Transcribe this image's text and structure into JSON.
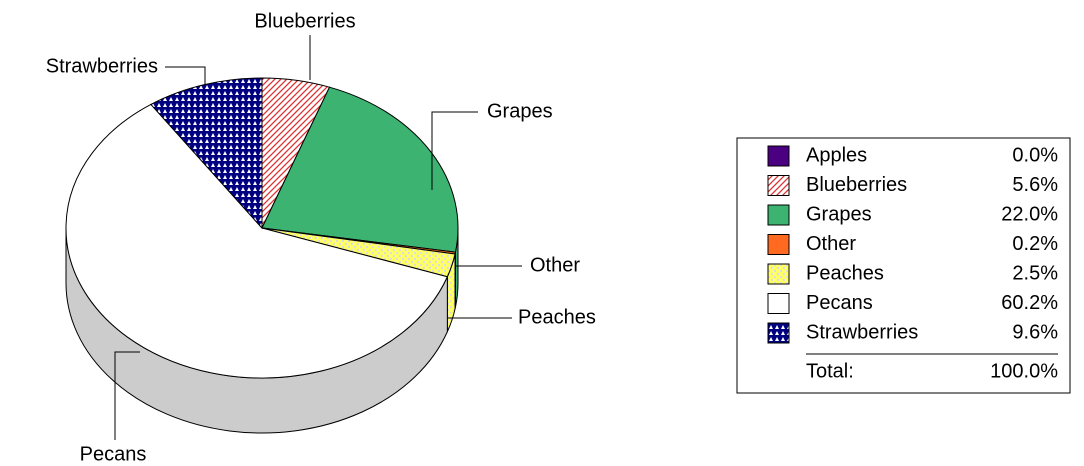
{
  "chart_data": {
    "type": "pie",
    "categories": [
      "Apples",
      "Blueberries",
      "Grapes",
      "Other",
      "Peaches",
      "Pecans",
      "Strawberries"
    ],
    "values": [
      0.0,
      5.6,
      22.0,
      0.2,
      2.5,
      60.2,
      9.6
    ],
    "value_labels": [
      "0.0%",
      "5.6%",
      "22.0%",
      "0.2%",
      "2.5%",
      "60.2%",
      "9.6%"
    ],
    "colors": [
      "#4b0082",
      "#e03030",
      "#3cb371",
      "#ff6a20",
      "#ffff66",
      "#ffffff",
      "#000080"
    ],
    "patterns": [
      "solid",
      "hatch",
      "solid",
      "solid",
      "dots",
      "solid",
      "checker"
    ],
    "total_label": "Total:",
    "total": {
      "value": 100.0,
      "label": "100.0%"
    },
    "legend": "right"
  }
}
